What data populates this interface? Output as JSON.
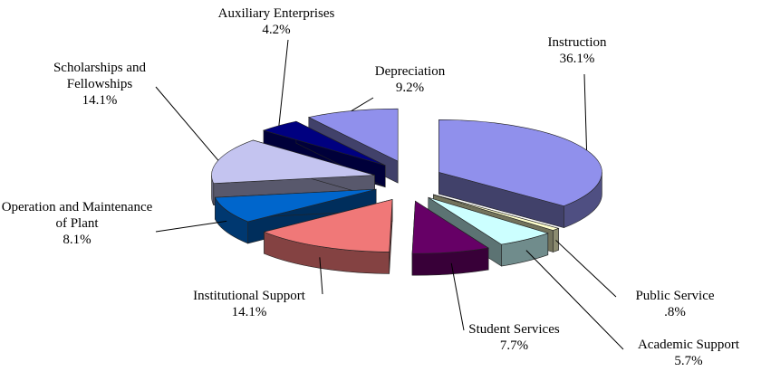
{
  "chart_data": {
    "type": "pie3d",
    "categories": [
      "Instruction",
      "Public Service",
      "Academic Support",
      "Student Services",
      "Institutional Support",
      "Operation and Maintenance of Plant",
      "Scholarships and Fellowships",
      "Auxiliary Enterprises",
      "Depreciation"
    ],
    "values": [
      36.1,
      0.8,
      5.7,
      7.7,
      14.1,
      8.1,
      14.1,
      4.2,
      9.2
    ],
    "value_labels": [
      "36.1%",
      ".8%",
      "5.7%",
      "7.7%",
      "14.1%",
      "8.1%",
      "14.1%",
      "4.2%",
      "9.2%"
    ],
    "colors": [
      "#9090ec",
      "#ffffcc",
      "#ccffff",
      "#660066",
      "#f07878",
      "#0066cc",
      "#c4c4f0",
      "#000080",
      "#9090ec"
    ]
  }
}
